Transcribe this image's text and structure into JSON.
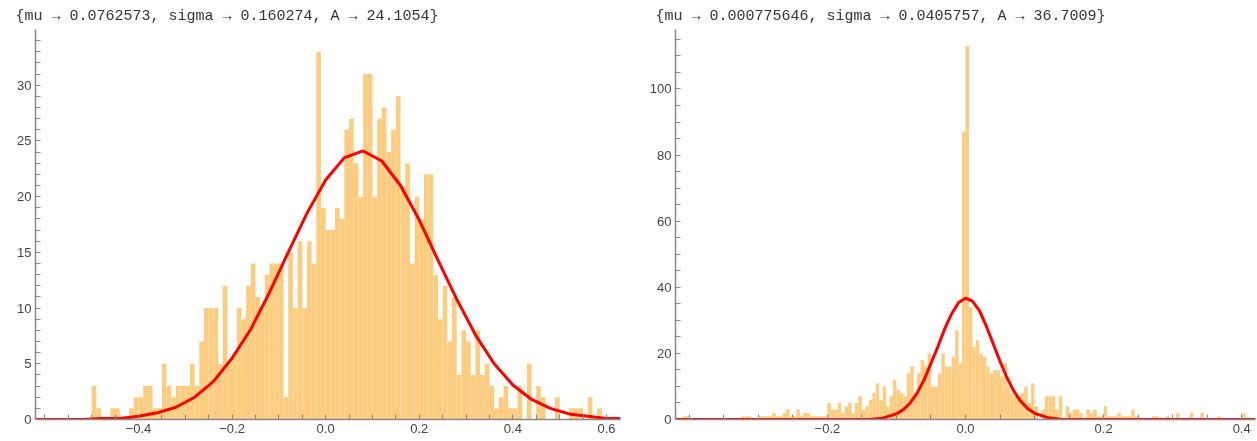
{
  "chart_data": [
    {
      "type": "histogram",
      "title": "{mu → 0.0762573, sigma → 0.160274, A → 24.1054}",
      "color": "#fccd80",
      "bins": [
        -0.5,
        -0.49,
        -0.48,
        -0.47,
        -0.46,
        -0.45,
        -0.44,
        -0.43,
        -0.42,
        -0.41,
        -0.4,
        -0.39,
        -0.38,
        -0.37,
        -0.36,
        -0.35,
        -0.34,
        -0.33,
        -0.32,
        -0.31,
        -0.3,
        -0.29,
        -0.28,
        -0.27,
        -0.26,
        -0.25,
        -0.24,
        -0.23,
        -0.22,
        -0.21,
        -0.2,
        -0.19,
        -0.18,
        -0.17,
        -0.16,
        -0.15,
        -0.14,
        -0.13,
        -0.12,
        -0.11,
        -0.1,
        -0.09,
        -0.08,
        -0.07,
        -0.06,
        -0.05,
        -0.04,
        -0.03,
        -0.02,
        -0.01,
        0.0,
        0.01,
        0.02,
        0.03,
        0.04,
        0.05,
        0.06,
        0.07,
        0.08,
        0.09,
        0.1,
        0.11,
        0.12,
        0.13,
        0.14,
        0.15,
        0.16,
        0.17,
        0.18,
        0.19,
        0.2,
        0.21,
        0.22,
        0.23,
        0.24,
        0.25,
        0.26,
        0.27,
        0.28,
        0.29,
        0.3,
        0.31,
        0.32,
        0.33,
        0.34,
        0.35,
        0.36,
        0.37,
        0.38,
        0.39,
        0.4,
        0.41,
        0.42,
        0.43,
        0.44,
        0.45,
        0.46,
        0.47,
        0.48,
        0.49,
        0.5,
        0.51,
        0.52,
        0.53,
        0.54,
        0.55,
        0.56,
        0.57,
        0.58,
        0.59,
        0.6
      ],
      "values": [
        3,
        1,
        0,
        0,
        1,
        1,
        0,
        0,
        1,
        2,
        2,
        3,
        3,
        1,
        1,
        5,
        3,
        2,
        3,
        3,
        3,
        5,
        3,
        7,
        10,
        10,
        10,
        5,
        12,
        5,
        6,
        10,
        9,
        12,
        14,
        11,
        10,
        13,
        14,
        14,
        14,
        2,
        15,
        10,
        16,
        10,
        16,
        14,
        33,
        19,
        17,
        17,
        19,
        18,
        26,
        27,
        23,
        20,
        31,
        31,
        20,
        27,
        28,
        24,
        26,
        29,
        21,
        23,
        14,
        20,
        18,
        22,
        22,
        13,
        9,
        12,
        7,
        11,
        4,
        8,
        7,
        4,
        8,
        4,
        5,
        3,
        1,
        2,
        3,
        1,
        1,
        3,
        0,
        5,
        0,
        3,
        2,
        0,
        0,
        2,
        0,
        0,
        1,
        1,
        1,
        0,
        2,
        0,
        1,
        0
      ],
      "series": [
        {
          "type": "line",
          "color": "#ff0000",
          "x": [
            -0.62,
            -0.6,
            -0.56,
            -0.52,
            -0.48,
            -0.44,
            -0.4,
            -0.36,
            -0.32,
            -0.28,
            -0.24,
            -0.2,
            -0.16,
            -0.12,
            -0.08,
            -0.04,
            0.0,
            0.04,
            0.08,
            0.12,
            0.16,
            0.2,
            0.24,
            0.28,
            0.32,
            0.36,
            0.4,
            0.44,
            0.48,
            0.52,
            0.56,
            0.6,
            0.63
          ],
          "values": [
            0.0,
            0.0,
            0.0,
            0.0,
            0.1,
            0.1,
            0.3,
            0.6,
            1.1,
            2.0,
            3.4,
            5.5,
            8.1,
            11.4,
            15.0,
            18.5,
            21.5,
            23.5,
            24.1,
            23.2,
            21.0,
            17.9,
            14.3,
            10.8,
            7.6,
            5.0,
            3.1,
            1.8,
            1.0,
            0.5,
            0.3,
            0.1,
            0.1
          ]
        }
      ],
      "xlim": [
        -0.62,
        0.63
      ],
      "ylim": [
        0,
        35
      ],
      "xticks": [
        {
          "value": -0.6,
          "label": null
        },
        {
          "value": -0.55,
          "label": null
        },
        {
          "value": -0.5,
          "label": null
        },
        {
          "value": -0.45,
          "label": null
        },
        {
          "value": -0.4,
          "label": "−0.4"
        },
        {
          "value": -0.35,
          "label": null
        },
        {
          "value": -0.3,
          "label": null
        },
        {
          "value": -0.25,
          "label": null
        },
        {
          "value": -0.2,
          "label": "−0.2"
        },
        {
          "value": -0.15,
          "label": null
        },
        {
          "value": -0.1,
          "label": null
        },
        {
          "value": -0.05,
          "label": null
        },
        {
          "value": 0.0,
          "label": "0.0"
        },
        {
          "value": 0.05,
          "label": null
        },
        {
          "value": 0.1,
          "label": null
        },
        {
          "value": 0.15,
          "label": null
        },
        {
          "value": 0.2,
          "label": "0.2"
        },
        {
          "value": 0.25,
          "label": null
        },
        {
          "value": 0.3,
          "label": null
        },
        {
          "value": 0.35,
          "label": null
        },
        {
          "value": 0.4,
          "label": "0.4"
        },
        {
          "value": 0.45,
          "label": null
        },
        {
          "value": 0.5,
          "label": null
        },
        {
          "value": 0.55,
          "label": null
        },
        {
          "value": 0.6,
          "label": "0.6"
        }
      ],
      "yticks": [
        0,
        {
          "value": 1,
          "label": null
        },
        {
          "value": 2,
          "label": null
        },
        {
          "value": 3,
          "label": null
        },
        {
          "value": 4,
          "label": null
        },
        5,
        {
          "value": 6,
          "label": null
        },
        {
          "value": 7,
          "label": null
        },
        {
          "value": 8,
          "label": null
        },
        {
          "value": 9,
          "label": null
        },
        10,
        {
          "value": 11,
          "label": null
        },
        {
          "value": 12,
          "label": null
        },
        {
          "value": 13,
          "label": null
        },
        {
          "value": 14,
          "label": null
        },
        15,
        {
          "value": 16,
          "label": null
        },
        {
          "value": 17,
          "label": null
        },
        {
          "value": 18,
          "label": null
        },
        {
          "value": 19,
          "label": null
        },
        20,
        {
          "value": 21,
          "label": null
        },
        {
          "value": 22,
          "label": null
        },
        {
          "value": 23,
          "label": null
        },
        {
          "value": 24,
          "label": null
        },
        25,
        {
          "value": 26,
          "label": null
        },
        {
          "value": 27,
          "label": null
        },
        {
          "value": 28,
          "label": null
        },
        {
          "value": 29,
          "label": null
        },
        30,
        {
          "value": 31,
          "label": null
        },
        {
          "value": 32,
          "label": null
        },
        {
          "value": 33,
          "label": null
        },
        {
          "value": 34,
          "label": null
        }
      ]
    },
    {
      "type": "histogram",
      "title": "{mu → 0.000775646, sigma → 0.0405757, A → 36.7009}",
      "color": "#fccd80",
      "bins": [
        -0.41,
        -0.405,
        -0.4,
        -0.395,
        -0.39,
        -0.385,
        -0.38,
        -0.375,
        -0.37,
        -0.365,
        -0.36,
        -0.355,
        -0.35,
        -0.345,
        -0.34,
        -0.335,
        -0.33,
        -0.325,
        -0.32,
        -0.315,
        -0.31,
        -0.305,
        -0.3,
        -0.295,
        -0.29,
        -0.285,
        -0.28,
        -0.275,
        -0.27,
        -0.265,
        -0.26,
        -0.255,
        -0.25,
        -0.245,
        -0.24,
        -0.235,
        -0.23,
        -0.225,
        -0.22,
        -0.215,
        -0.21,
        -0.205,
        -0.2,
        -0.195,
        -0.19,
        -0.185,
        -0.18,
        -0.175,
        -0.17,
        -0.165,
        -0.16,
        -0.155,
        -0.15,
        -0.145,
        -0.14,
        -0.135,
        -0.13,
        -0.125,
        -0.12,
        -0.115,
        -0.11,
        -0.105,
        -0.1,
        -0.095,
        -0.09,
        -0.085,
        -0.08,
        -0.075,
        -0.07,
        -0.065,
        -0.06,
        -0.055,
        -0.05,
        -0.045,
        -0.04,
        -0.035,
        -0.03,
        -0.025,
        -0.02,
        -0.015,
        -0.01,
        -0.005,
        0.0,
        0.005,
        0.01,
        0.015,
        0.02,
        0.025,
        0.03,
        0.035,
        0.04,
        0.045,
        0.05,
        0.055,
        0.06,
        0.065,
        0.07,
        0.075,
        0.08,
        0.085,
        0.09,
        0.095,
        0.1,
        0.105,
        0.11,
        0.115,
        0.12,
        0.125,
        0.13,
        0.135,
        0.14,
        0.145,
        0.15,
        0.155,
        0.16,
        0.165,
        0.17,
        0.175,
        0.18,
        0.185,
        0.19,
        0.195,
        0.2,
        0.205,
        0.21,
        0.215,
        0.22,
        0.225,
        0.23,
        0.235,
        0.24,
        0.245,
        0.25,
        0.255,
        0.26,
        0.265,
        0.27,
        0.275,
        0.28,
        0.285,
        0.29,
        0.295,
        0.3,
        0.305,
        0.31,
        0.315,
        0.32,
        0.325,
        0.33,
        0.335,
        0.34,
        0.345,
        0.35,
        0.355,
        0.36,
        0.365,
        0.37,
        0.375,
        0.38,
        0.385,
        0.39,
        0.395,
        0.4,
        0.405
      ],
      "values": [
        1,
        1,
        0,
        0,
        0,
        0,
        0,
        0,
        0,
        0,
        0,
        0,
        0,
        0,
        0,
        0,
        0,
        1,
        1,
        1,
        0,
        0,
        1,
        1,
        1,
        1,
        2,
        1,
        1,
        2,
        3,
        1,
        1,
        3,
        1,
        2,
        2,
        1,
        1,
        1,
        1,
        1,
        5,
        3,
        3,
        5,
        2,
        4,
        5,
        2,
        5,
        7,
        3,
        4,
        6,
        8,
        11,
        6,
        10,
        4,
        7,
        12,
        9,
        8,
        7,
        14,
        16,
        8,
        14,
        18,
        16,
        20,
        10,
        10,
        14,
        20,
        16,
        16,
        19,
        27,
        17,
        87,
        113,
        34,
        22,
        24,
        20,
        19,
        16,
        14,
        15,
        15,
        13,
        17,
        10,
        8,
        7,
        7,
        8,
        10,
        5,
        11,
        4,
        null,
        3,
        7,
        7,
        7,
        3,
        7,
        0,
        4,
        2,
        3,
        3,
        2,
        0,
        3,
        2,
        3,
        1,
        1,
        4,
        1,
        1,
        1,
        2,
        1,
        1,
        1,
        3,
        1,
        0,
        0,
        0,
        0,
        1,
        1,
        0,
        0,
        1,
        0,
        0,
        2,
        0,
        0,
        0,
        2,
        0,
        0,
        2,
        0,
        0,
        0,
        0,
        1,
        0,
        0,
        0,
        0,
        0,
        0,
        2
      ],
      "series": [
        {
          "type": "line",
          "color": "#ff0000",
          "x": [
            -0.42,
            -0.2,
            -0.16,
            -0.14,
            -0.12,
            -0.1,
            -0.09,
            -0.08,
            -0.07,
            -0.06,
            -0.05,
            -0.04,
            -0.03,
            -0.02,
            -0.01,
            0.0,
            0.01,
            0.02,
            0.03,
            0.04,
            0.05,
            0.06,
            0.07,
            0.08,
            0.09,
            0.1,
            0.12,
            0.14,
            0.16,
            0.2,
            0.42
          ],
          "values": [
            0,
            0,
            0,
            0,
            0.4,
            1.7,
            3,
            5,
            8,
            12,
            17,
            22,
            27.5,
            32,
            35.4,
            36.7,
            35.8,
            33,
            28.3,
            23,
            17.6,
            12.7,
            8.6,
            5.5,
            3.3,
            1.9,
            0.5,
            0,
            0,
            0,
            0
          ]
        }
      ],
      "xlim": [
        -0.42,
        0.42
      ],
      "ylim": [
        0,
        118
      ],
      "xticks": [
        {
          "value": -0.4,
          "label": null
        },
        {
          "value": -0.35,
          "label": null
        },
        {
          "value": -0.3,
          "label": null
        },
        {
          "value": -0.25,
          "label": null
        },
        {
          "value": -0.2,
          "label": "−0.2"
        },
        {
          "value": -0.15,
          "label": null
        },
        {
          "value": -0.1,
          "label": null
        },
        {
          "value": -0.05,
          "label": null
        },
        {
          "value": 0.0,
          "label": "0.0"
        },
        {
          "value": 0.05,
          "label": null
        },
        {
          "value": 0.1,
          "label": null
        },
        {
          "value": 0.15,
          "label": null
        },
        {
          "value": 0.2,
          "label": "0.2"
        },
        {
          "value": 0.25,
          "label": null
        },
        {
          "value": 0.3,
          "label": null
        },
        {
          "value": 0.35,
          "label": null
        },
        {
          "value": 0.4,
          "label": "0.4"
        }
      ],
      "yticks": [
        0,
        {
          "value": 5,
          "label": null
        },
        {
          "value": 10,
          "label": null
        },
        {
          "value": 15,
          "label": null
        },
        20,
        {
          "value": 25,
          "label": null
        },
        {
          "value": 30,
          "label": null
        },
        {
          "value": 35,
          "label": null
        },
        40,
        {
          "value": 45,
          "label": null
        },
        {
          "value": 50,
          "label": null
        },
        {
          "value": 55,
          "label": null
        },
        60,
        {
          "value": 65,
          "label": null
        },
        {
          "value": 70,
          "label": null
        },
        {
          "value": 75,
          "label": null
        },
        80,
        {
          "value": 85,
          "label": null
        },
        {
          "value": 90,
          "label": null
        },
        {
          "value": 95,
          "label": null
        },
        100,
        {
          "value": 105,
          "label": null
        },
        {
          "value": 110,
          "label": null
        },
        {
          "value": 115,
          "label": null
        }
      ]
    }
  ]
}
